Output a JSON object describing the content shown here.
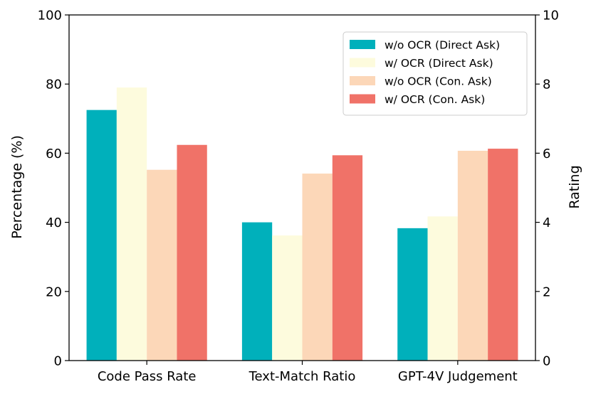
{
  "chart_data": {
    "type": "bar",
    "categories": [
      "Code Pass Rate",
      "Text-Match Ratio",
      "GPT-4V Judgement"
    ],
    "series": [
      {
        "name": "w/o OCR (Direct Ask)",
        "values": [
          72.5,
          40.0,
          38.3
        ],
        "color": "#00b0bb"
      },
      {
        "name": "w/ OCR (Direct Ask)",
        "values": [
          79.0,
          36.2,
          41.7
        ],
        "color": "#fdfbdd"
      },
      {
        "name": "w/o OCR (Con. Ask)",
        "values": [
          55.2,
          54.1,
          60.7
        ],
        "color": "#fcd7b8"
      },
      {
        "name": "w/ OCR (Con. Ask)",
        "values": [
          62.4,
          59.4,
          61.3
        ],
        "color": "#f07268"
      }
    ],
    "xlabel": "",
    "ylabel": "Percentage (%)",
    "ylim": [
      0,
      100
    ],
    "yticks": [
      "0",
      "20",
      "40",
      "60",
      "80",
      "100"
    ],
    "y2label": "Rating",
    "y2lim": [
      0,
      10
    ],
    "y2ticks": [
      "0",
      "2",
      "4",
      "6",
      "8",
      "10"
    ],
    "grid": false,
    "legend_position": "top-right"
  }
}
